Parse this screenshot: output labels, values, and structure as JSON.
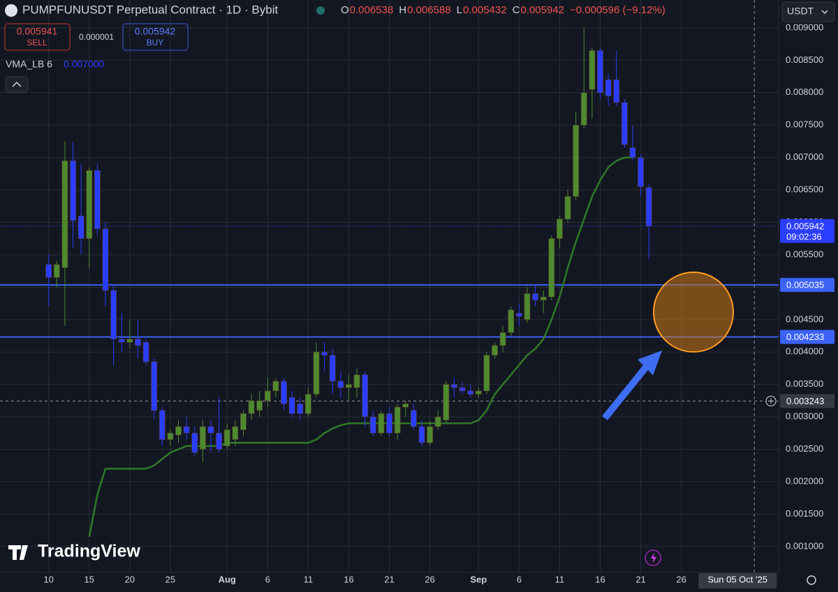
{
  "chart_data": {
    "type": "candlestick",
    "title": "PUMPFUNUSDT Perpetual Contract · 1D · Bybit",
    "ohlc_header": [
      {
        "key": "O",
        "value": "0.006538"
      },
      {
        "key": "H",
        "value": "0.006588"
      },
      {
        "key": "L",
        "value": "0.005432"
      },
      {
        "key": "C",
        "value": "0.005942"
      }
    ],
    "change": "−0.000596 (−9.12%)",
    "sell": {
      "price": "0.005941",
      "label": "SELL"
    },
    "spread": "0.000001",
    "buy": {
      "price": "0.005942",
      "label": "BUY"
    },
    "currency": "USDT",
    "brand": "TradingView",
    "x": [
      "2025-07-10",
      "2025-07-11",
      "2025-07-12",
      "2025-07-13",
      "2025-07-14",
      "2025-07-15",
      "2025-07-16",
      "2025-07-17",
      "2025-07-18",
      "2025-07-19",
      "2025-07-20",
      "2025-07-21",
      "2025-07-22",
      "2025-07-23",
      "2025-07-24",
      "2025-07-25",
      "2025-07-26",
      "2025-07-27",
      "2025-07-28",
      "2025-07-29",
      "2025-07-30",
      "2025-07-31",
      "2025-08-01",
      "2025-08-02",
      "2025-08-03",
      "2025-08-04",
      "2025-08-05",
      "2025-08-06",
      "2025-08-07",
      "2025-08-08",
      "2025-08-09",
      "2025-08-10",
      "2025-08-11",
      "2025-08-12",
      "2025-08-13",
      "2025-08-14",
      "2025-08-15",
      "2025-08-16",
      "2025-08-17",
      "2025-08-18",
      "2025-08-19",
      "2025-08-20",
      "2025-08-21",
      "2025-08-22",
      "2025-08-23",
      "2025-08-24",
      "2025-08-25",
      "2025-08-26",
      "2025-08-27",
      "2025-08-28",
      "2025-08-29",
      "2025-08-30",
      "2025-08-31",
      "2025-09-01",
      "2025-09-02",
      "2025-09-03",
      "2025-09-04",
      "2025-09-05",
      "2025-09-06",
      "2025-09-07",
      "2025-09-08",
      "2025-09-09",
      "2025-09-10",
      "2025-09-11",
      "2025-09-12",
      "2025-09-13",
      "2025-09-14",
      "2025-09-15",
      "2025-09-16",
      "2025-09-17",
      "2025-09-18",
      "2025-09-19",
      "2025-09-20",
      "2025-09-21",
      "2025-09-22"
    ],
    "open": [
      0.00535,
      0.00515,
      0.0053,
      0.00695,
      0.0061,
      0.00575,
      0.0068,
      0.0059,
      0.00495,
      0.0042,
      0.00415,
      0.0042,
      0.00415,
      0.00385,
      0.0031,
      0.00265,
      0.00272,
      0.00285,
      0.00275,
      0.0025,
      0.00285,
      0.00275,
      0.00255,
      0.00265,
      0.0028,
      0.00305,
      0.0031,
      0.00325,
      0.0034,
      0.00355,
      0.0033,
      0.0032,
      0.00305,
      0.00335,
      0.004,
      0.00395,
      0.00355,
      0.00345,
      0.00345,
      0.00365,
      0.003,
      0.00275,
      0.00305,
      0.00275,
      0.00315,
      0.0031,
      0.00285,
      0.0026,
      0.00285,
      0.00295,
      0.0035,
      0.00345,
      0.0034,
      0.00335,
      0.0034,
      0.00395,
      0.0041,
      0.0043,
      0.0046,
      0.0045,
      0.0049,
      0.0048,
      0.00485,
      0.00575,
      0.00605,
      0.0064,
      0.0075,
      0.00805,
      0.00865,
      0.0082,
      0.0082,
      0.00785,
      0.00715,
      0.007,
      0.006538
    ],
    "high": [
      0.0055,
      0.0054,
      0.00725,
      0.00725,
      0.0069,
      0.00685,
      0.0069,
      0.006,
      0.00505,
      0.0046,
      0.0045,
      0.0045,
      0.0042,
      0.0039,
      0.00315,
      0.0028,
      0.00295,
      0.003,
      0.00285,
      0.00295,
      0.00295,
      0.0033,
      0.0029,
      0.00295,
      0.0031,
      0.00335,
      0.0034,
      0.0036,
      0.0036,
      0.0036,
      0.0034,
      0.0033,
      0.00345,
      0.00415,
      0.00415,
      0.00405,
      0.0037,
      0.00365,
      0.00375,
      0.0037,
      0.0031,
      0.0031,
      0.00315,
      0.0032,
      0.00325,
      0.0032,
      0.00295,
      0.00295,
      0.0031,
      0.00355,
      0.0036,
      0.00355,
      0.0035,
      0.00345,
      0.004,
      0.00415,
      0.0044,
      0.0047,
      0.00475,
      0.005,
      0.00505,
      0.00495,
      0.0058,
      0.0061,
      0.0065,
      0.0077,
      0.009,
      0.0087,
      0.0087,
      0.0083,
      0.00865,
      0.0079,
      0.0075,
      0.00705,
      0.006588
    ],
    "low": [
      0.0047,
      0.005,
      0.0044,
      0.0056,
      0.0055,
      0.0053,
      0.0058,
      0.0047,
      0.0038,
      0.004,
      0.00405,
      0.0039,
      0.0038,
      0.00295,
      0.00255,
      0.00255,
      0.0026,
      0.00265,
      0.0024,
      0.0023,
      0.00245,
      0.00245,
      0.0025,
      0.00255,
      0.0027,
      0.00295,
      0.003,
      0.00315,
      0.0033,
      0.0031,
      0.003,
      0.00295,
      0.003,
      0.0033,
      0.0037,
      0.00335,
      0.0033,
      0.00325,
      0.0033,
      0.00285,
      0.0027,
      0.0027,
      0.0027,
      0.00265,
      0.003,
      0.0028,
      0.00255,
      0.00255,
      0.0028,
      0.0029,
      0.0033,
      0.00335,
      0.0033,
      0.0033,
      0.00335,
      0.0039,
      0.004,
      0.00425,
      0.0044,
      0.00445,
      0.0047,
      0.0046,
      0.0048,
      0.0056,
      0.006,
      0.00635,
      0.00745,
      0.0076,
      0.0079,
      0.0078,
      0.0078,
      0.00715,
      0.00695,
      0.0064,
      0.005432
    ],
    "close": [
      0.00515,
      0.00535,
      0.00695,
      0.00603,
      0.00575,
      0.0068,
      0.0059,
      0.00495,
      0.0042,
      0.00415,
      0.0042,
      0.0041,
      0.00385,
      0.0031,
      0.00265,
      0.00275,
      0.00285,
      0.00275,
      0.00245,
      0.00285,
      0.00275,
      0.0025,
      0.0028,
      0.00285,
      0.00305,
      0.00325,
      0.00325,
      0.0034,
      0.00355,
      0.0032,
      0.00305,
      0.00305,
      0.00335,
      0.004,
      0.00395,
      0.00355,
      0.00345,
      0.0035,
      0.00365,
      0.003,
      0.00275,
      0.00305,
      0.00275,
      0.00315,
      0.0032,
      0.00285,
      0.0026,
      0.00285,
      0.003,
      0.0035,
      0.00345,
      0.0034,
      0.00335,
      0.0034,
      0.00395,
      0.0041,
      0.0043,
      0.00465,
      0.00455,
      0.0049,
      0.0048,
      0.00485,
      0.00575,
      0.00605,
      0.0064,
      0.0075,
      0.008,
      0.00865,
      0.008,
      0.00795,
      0.00785,
      0.0072,
      0.007,
      0.00655,
      0.005942
    ],
    "up_color": "#4e8a2e",
    "down_color": "#2b3dff",
    "vma": {
      "name": "VMA_LB 6",
      "value_label": "0.007000",
      "color": "#2f7a26",
      "values": [
        null,
        null,
        null,
        null,
        null,
        0.00115,
        0.0018,
        0.0022,
        0.0022,
        0.0022,
        0.0022,
        0.0022,
        0.0022,
        0.00225,
        0.00235,
        0.00245,
        0.0025,
        0.00255,
        0.00255,
        0.00255,
        0.00255,
        0.00255,
        0.0026,
        0.0026,
        0.0026,
        0.0026,
        0.0026,
        0.0026,
        0.0026,
        0.0026,
        0.0026,
        0.0026,
        0.0026,
        0.00265,
        0.00275,
        0.00282,
        0.00287,
        0.0029,
        0.0029,
        0.0029,
        0.0029,
        0.0029,
        0.0029,
        0.0029,
        0.0029,
        0.0029,
        0.0029,
        0.0029,
        0.0029,
        0.0029,
        0.0029,
        0.0029,
        0.0029,
        0.00295,
        0.0031,
        0.00335,
        0.0035,
        0.00365,
        0.0038,
        0.00395,
        0.00405,
        0.0042,
        0.0045,
        0.00485,
        0.0053,
        0.0057,
        0.00605,
        0.0064,
        0.00665,
        0.00685,
        0.00695,
        0.007,
        0.007,
        null,
        null
      ]
    },
    "last_price": 0.005942,
    "countdown": "09:02:36",
    "hlines": [
      0.005035,
      0.004233
    ],
    "hline_color": "#3b63f5",
    "crosshair": {
      "y": 0.003243,
      "x": {
        "value": "2025-10-05",
        "label": "Sun 05 Oct '25"
      }
    },
    "xlim": [
      "2025-07-04",
      "2025-10-08"
    ],
    "ylim": [
      0.0006,
      0.00943
    ],
    "yticks": [
      {
        "value": 0.001,
        "label": "0.001000"
      },
      {
        "value": 0.0015,
        "label": "0.001500"
      },
      {
        "value": 0.002,
        "label": "0.002000"
      },
      {
        "value": 0.0025,
        "label": "0.002500"
      },
      {
        "value": 0.003,
        "label": "0.003000"
      },
      {
        "value": 0.0035,
        "label": "0.003500"
      },
      {
        "value": 0.004,
        "label": "0.004000"
      },
      {
        "value": 0.0045,
        "label": "0.004500"
      },
      {
        "value": 0.005,
        "label": "0.005000"
      },
      {
        "value": 0.0055,
        "label": "0.005500"
      },
      {
        "value": 0.006,
        "label": "0.006000"
      },
      {
        "value": 0.0065,
        "label": "0.006500"
      },
      {
        "value": 0.007,
        "label": "0.007000"
      },
      {
        "value": 0.0075,
        "label": "0.007500"
      },
      {
        "value": 0.008,
        "label": "0.008000"
      },
      {
        "value": 0.0085,
        "label": "0.008500"
      },
      {
        "value": 0.009,
        "label": "0.009000"
      }
    ],
    "xticks": [
      {
        "value": "2025-07-10",
        "label": "10"
      },
      {
        "value": "2025-07-15",
        "label": "15"
      },
      {
        "value": "2025-07-20",
        "label": "20"
      },
      {
        "value": "2025-07-25",
        "label": "25"
      },
      {
        "value": "2025-08-01",
        "label": "Aug"
      },
      {
        "value": "2025-08-06",
        "label": "6"
      },
      {
        "value": "2025-08-11",
        "label": "11"
      },
      {
        "value": "2025-08-16",
        "label": "16"
      },
      {
        "value": "2025-08-21",
        "label": "21"
      },
      {
        "value": "2025-08-26",
        "label": "26"
      },
      {
        "value": "2025-09-01",
        "label": "Sep"
      },
      {
        "value": "2025-09-06",
        "label": "6"
      },
      {
        "value": "2025-09-11",
        "label": "11"
      },
      {
        "value": "2025-09-16",
        "label": "16"
      },
      {
        "value": "2025-09-21",
        "label": "21"
      },
      {
        "value": "2025-09-26",
        "label": "26"
      }
    ],
    "grid": true
  }
}
